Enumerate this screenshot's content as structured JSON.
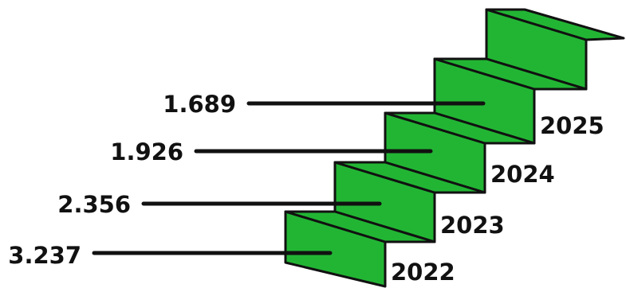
{
  "colors": {
    "step_fill": "#22b534",
    "step_shade": "#1a9a2a",
    "outline": "#111111"
  },
  "steps": [
    {
      "year": "2022",
      "value": "3.237"
    },
    {
      "year": "2023",
      "value": "2.356"
    },
    {
      "year": "2024",
      "value": "1.926"
    },
    {
      "year": "2025",
      "value": "1.689"
    }
  ]
}
